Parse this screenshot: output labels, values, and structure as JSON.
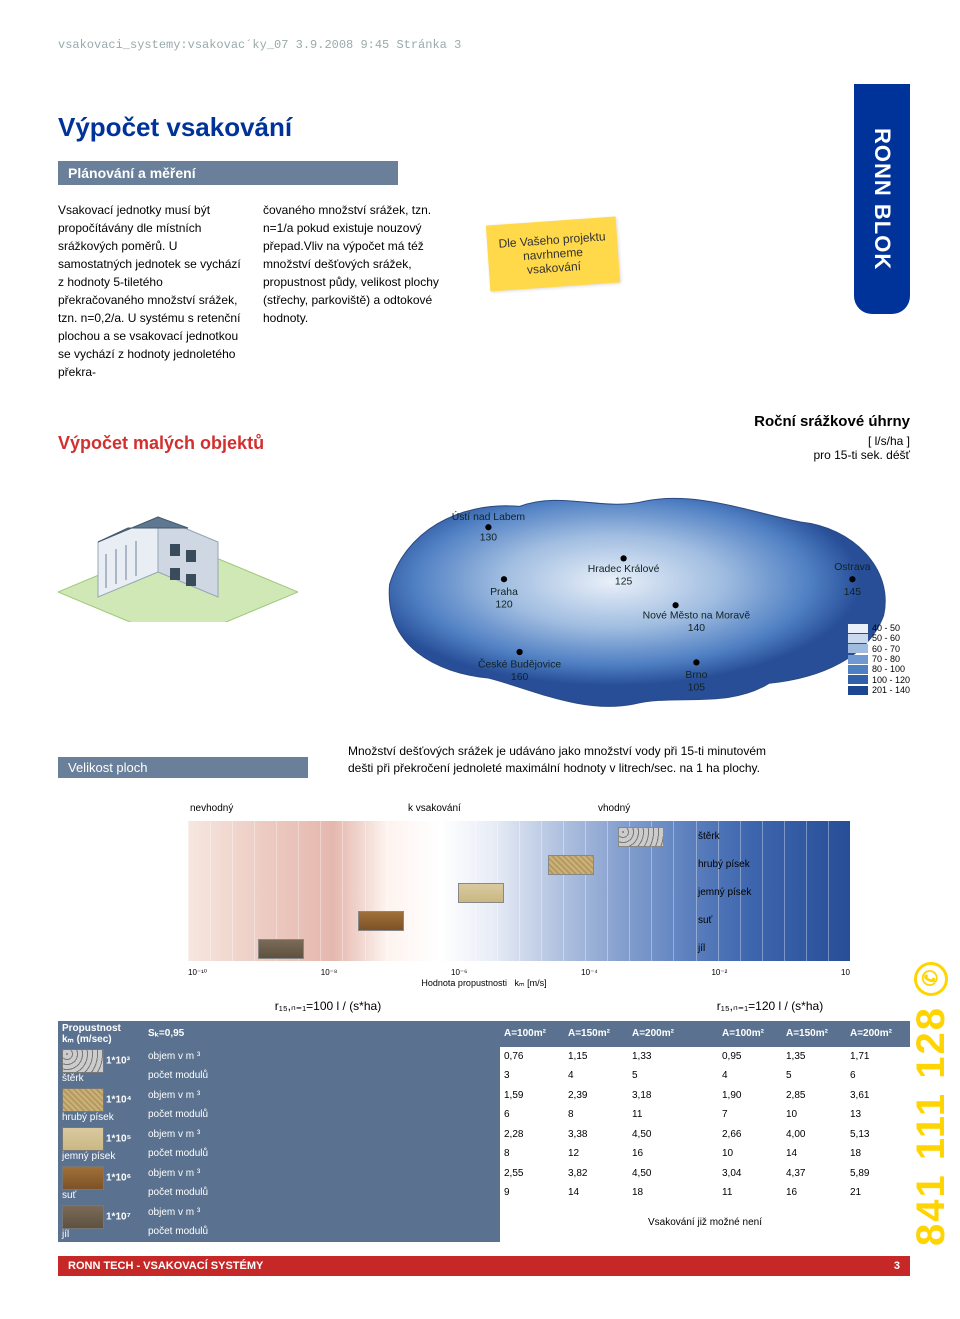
{
  "meta_line": "vsakovaci_systemy:vsakovac´ky_07  3.9.2008  9:45  Stránka 3",
  "side_tab": "RONN BLOK",
  "h1": "Výpočet vsakování",
  "sub_bar": "Plánování a měření",
  "col1": "Vsakovací jednotky musí být propočítávány dle místních srážkových poměrů. U samostatných jednotek se vychází z hodnoty 5-tiletého překračovaného množství srážek, tzn. n=0,2/a. U systému s retenční plochou a se vsakovací jednotkou se vychází z hodnoty jednoletého překra-",
  "col2": "čovaného množství srážek, tzn. n=1/a pokud existuje nouzový přepad.Vliv na výpočet má též množství dešťových srážek, propustnost půdy, velikost plochy (střechy, parkoviště) a odtokové hodnoty.",
  "note": {
    "l1": "Dle Vašeho projektu",
    "l2": "navrhneme",
    "l3": "vsakování"
  },
  "red_h": "Výpočet malých objektů",
  "map": {
    "title": "Roční srážkové úhrny",
    "sub": "[ l/s/ha ]\npro 15-ti sek. déšť",
    "cities": [
      {
        "name": "Ústí nad Labem",
        "val": "130"
      },
      {
        "name": "Praha",
        "val": "120"
      },
      {
        "name": "Hradec Králové",
        "val": "125"
      },
      {
        "name": "České Budějovice",
        "val": "160"
      },
      {
        "name": "Nové Město na Moravě",
        "val": "140"
      },
      {
        "name": "Brno",
        "val": "105"
      },
      {
        "name": "Ostrava",
        "val": "145"
      }
    ],
    "legend": [
      {
        "c": "#e9f0f9",
        "t": "40 -  50"
      },
      {
        "c": "#c9d9ee",
        "t": "50 -  60"
      },
      {
        "c": "#9fbce0",
        "t": "60 -  70"
      },
      {
        "c": "#6f99d0",
        "t": "70 -  80"
      },
      {
        "c": "#4f7fc3",
        "t": "80 - 100"
      },
      {
        "c": "#315fa8",
        "t": "100 - 120"
      },
      {
        "c": "#1d4690",
        "t": "201 - 140"
      }
    ]
  },
  "velikost": "Velikost ploch",
  "rain_desc": "Množství dešťových srážek je udáváno jako množství vody při 15-ti minutovém dešti při překročení jednoleté maximální hodnoty v litrech/sec. na 1 ha plochy.",
  "grad_labels": {
    "left": "nevhodný",
    "mid": "k vsakování",
    "right": "vhodný"
  },
  "soils": [
    "štěrk",
    "hrubý písek",
    "jemný písek",
    "suť",
    "jíl"
  ],
  "soil_styles": [
    "repeating-radial-gradient(circle at 4px 4px,#777 0 1px,#ccc 1px 5px)",
    "repeating-linear-gradient(45deg,#cbb27a 0 2px,#b59a60 2px 4px)",
    "linear-gradient(#d9c9a0,#cab882)",
    "linear-gradient(#a0703a,#7d5226)",
    "linear-gradient(#7a6b58,#5e513f)"
  ],
  "axis_ticks": [
    "10⁻¹⁰",
    "10⁻⁸",
    "10⁻⁶",
    "10⁻⁴",
    "10⁻²",
    "10"
  ],
  "axis_label_1": "Hodnota propustnosti",
  "axis_label_2": "kₘ [m/s]",
  "formula": {
    "left": "r₁₅,ₙ₌₁=100 l / (s*ha)",
    "right": "r₁₅,ₙ₌₁=120 l / (s*ha)"
  },
  "table": {
    "hdr1": "Propustnost\nkₘ (m/sec)",
    "sb": "Sₖ=0,95",
    "areas_l": [
      "A=100m²",
      "A=150m²",
      "A=200m²"
    ],
    "areas_r": [
      "A=100m²",
      "A=150m²",
      "A=200m²"
    ],
    "note": "Vsakování již možné není",
    "rows": [
      {
        "k": "1*10³",
        "soil": "štěrk",
        "l1": "objem v m ³",
        "l2": "počet modulů",
        "L": [
          [
            "0,76",
            "3"
          ],
          [
            "1,15",
            "4"
          ],
          [
            "1,33",
            "5"
          ]
        ],
        "R": [
          [
            "0,95",
            "4"
          ],
          [
            "1,35",
            "5"
          ],
          [
            "1,71",
            "6"
          ]
        ]
      },
      {
        "k": "1*10⁴",
        "soil": "hrubý písek",
        "l1": "objem v m ³",
        "l2": "počet modulů",
        "L": [
          [
            "1,59",
            "6"
          ],
          [
            "2,39",
            "8"
          ],
          [
            "3,18",
            "11"
          ]
        ],
        "R": [
          [
            "1,90",
            "7"
          ],
          [
            "2,85",
            "10"
          ],
          [
            "3,61",
            "13"
          ]
        ]
      },
      {
        "k": "1*10⁵",
        "soil": "jemný písek",
        "l1": "objem v m ³",
        "l2": "počet modulů",
        "L": [
          [
            "2,28",
            "8"
          ],
          [
            "3,38",
            "12"
          ],
          [
            "4,50",
            "16"
          ]
        ],
        "R": [
          [
            "2,66",
            "10"
          ],
          [
            "4,00",
            "14"
          ],
          [
            "5,13",
            "18"
          ]
        ]
      },
      {
        "k": "1*10⁶",
        "soil": "suť",
        "l1": "objem v m ³",
        "l2": "počet modulů",
        "L": [
          [
            "2,55",
            "9"
          ],
          [
            "3,82",
            "14"
          ],
          [
            "4,50",
            "18"
          ]
        ],
        "R": [
          [
            "3,04",
            "11"
          ],
          [
            "4,37",
            "16"
          ],
          [
            "5,89",
            "21"
          ]
        ]
      },
      {
        "k": "1*10⁷",
        "soil": "jíl",
        "l1": "objem v m ³",
        "l2": "počet modulů",
        "L": [],
        "R": []
      }
    ]
  },
  "footer": "RONN TECH - VSAKOVACÍ SYSTÉMY",
  "page_no": "3",
  "phone": "841 111 128"
}
